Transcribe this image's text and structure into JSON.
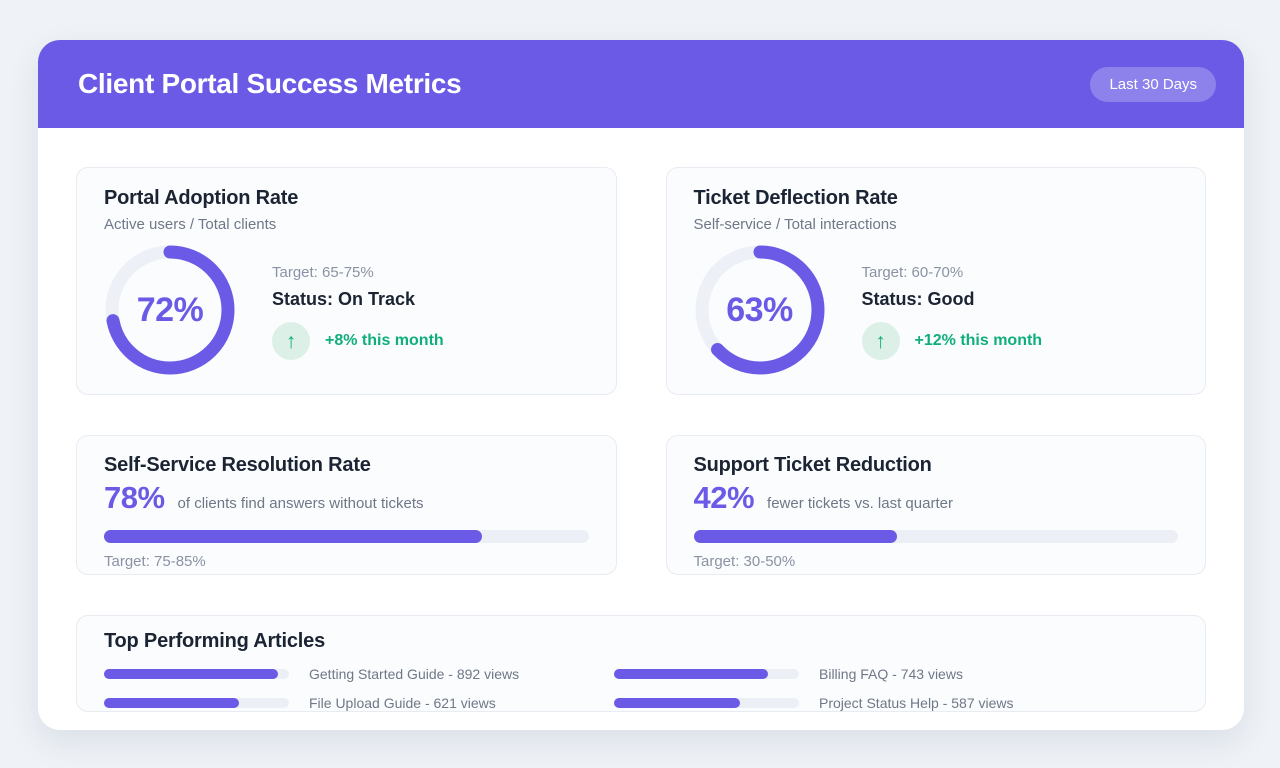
{
  "header": {
    "title": "Client Portal Success Metrics",
    "period_badge": "Last 30 Days"
  },
  "colors": {
    "accent_purple": "#6A5AE6",
    "success_green": "#0FAE7C",
    "success_green_bg": "#DCF0E8",
    "track_gray": "#EDEFF7",
    "heading_dark": "#1B2432",
    "muted_gray": "#6E7887",
    "light_gray": "#8A93A3",
    "page_bg": "#EFF3F7"
  },
  "gauges": [
    {
      "title": "Portal Adoption Rate",
      "subtitle": "Active users / Total clients",
      "value_pct": 72,
      "value_label": "72%",
      "target": "Target: 65-75%",
      "status": "Status: On Track",
      "trend": "+8% this month",
      "trend_arrow": "↑"
    },
    {
      "title": "Ticket Deflection Rate",
      "subtitle": "Self-service / Total interactions",
      "value_pct": 63,
      "value_label": "63%",
      "target": "Target: 60-70%",
      "status": "Status: Good",
      "trend": "+12% this month",
      "trend_arrow": "↑"
    }
  ],
  "bars": [
    {
      "title": "Self-Service Resolution Rate",
      "value_label": "78%",
      "value_pct": 78,
      "description": "of clients find answers without tickets",
      "target": "Target: 75-85%"
    },
    {
      "title": "Support Ticket Reduction",
      "value_label": "42%",
      "value_pct": 42,
      "description": "fewer tickets vs. last quarter",
      "target": "Target: 30-50%"
    }
  ],
  "articles": {
    "title": "Top Performing Articles",
    "items": [
      {
        "label": "Getting Started Guide - 892 views",
        "views": 892,
        "bar_pct": 94
      },
      {
        "label": "Billing FAQ - 743 views",
        "views": 743,
        "bar_pct": 83
      },
      {
        "label": "File Upload Guide - 621 views",
        "views": 621,
        "bar_pct": 73
      },
      {
        "label": "Project Status Help - 587 views",
        "views": 587,
        "bar_pct": 68
      }
    ]
  }
}
